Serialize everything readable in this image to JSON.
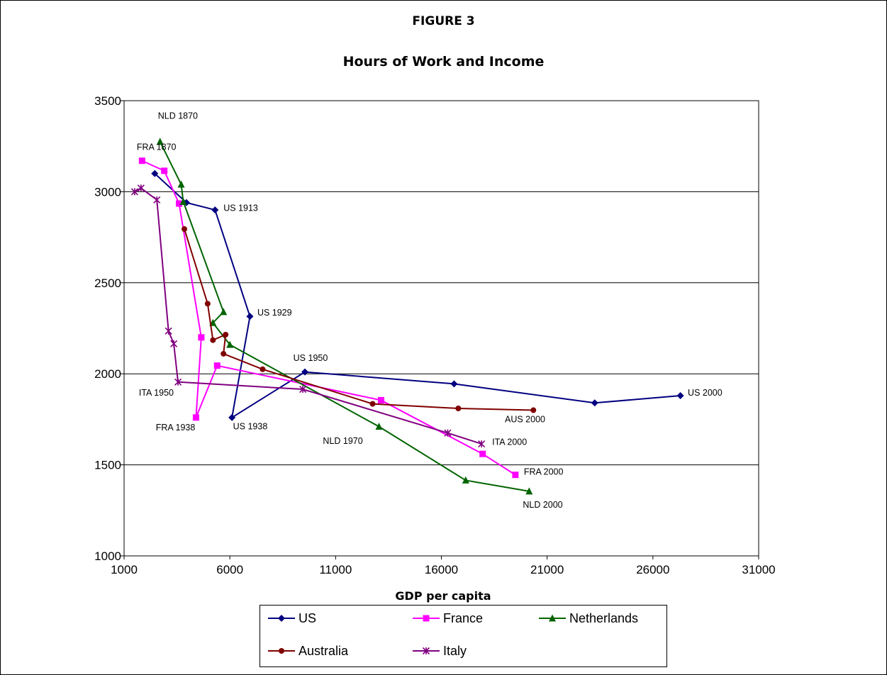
{
  "figure_label": "FIGURE 3",
  "chart_data": {
    "type": "line",
    "title": "Hours of Work and Income",
    "xlabel": "GDP per capita",
    "ylabel": "",
    "xlim": [
      1000,
      31000
    ],
    "ylim": [
      1000,
      3500
    ],
    "xticks": [
      1000,
      6000,
      11000,
      16000,
      21000,
      26000,
      31000
    ],
    "yticks": [
      1000,
      1500,
      2000,
      2500,
      3000,
      3500
    ],
    "grid": "horizontal",
    "legend_position": "bottom",
    "series": [
      {
        "name": "US",
        "color": "#000080",
        "marker": "diamond",
        "x": [
          2450,
          3950,
          5300,
          6950,
          6100,
          9550,
          16600,
          23250,
          27300
        ],
        "y": [
          3100,
          2940,
          2900,
          2315,
          1760,
          2010,
          1945,
          1840,
          1880
        ]
      },
      {
        "name": "France",
        "color": "#ff00ff",
        "marker": "square",
        "x": [
          1850,
          2900,
          3600,
          4650,
          4400,
          5400,
          13150,
          17950,
          19500
        ],
        "y": [
          3170,
          3115,
          2935,
          2200,
          1760,
          2045,
          1855,
          1560,
          1445
        ]
      },
      {
        "name": "Netherlands",
        "color": "#006400",
        "marker": "triangle",
        "x": [
          2700,
          3700,
          3800,
          5700,
          5200,
          6000,
          13050,
          17150,
          20150
        ],
        "y": [
          3275,
          3040,
          2945,
          2340,
          2280,
          2160,
          1710,
          1415,
          1355
        ]
      },
      {
        "name": "Australia",
        "color": "#800000",
        "marker": "circle",
        "x": [
          3850,
          4950,
          5200,
          5800,
          5700,
          7550,
          12750,
          16800,
          20350
        ],
        "y": [
          2795,
          2385,
          2185,
          2215,
          2110,
          2025,
          1835,
          1810,
          1800
        ]
      },
      {
        "name": "Italy",
        "color": "#800080",
        "marker": "star",
        "x": [
          1500,
          1800,
          2550,
          3100,
          3350,
          3550,
          9450,
          16300,
          17900
        ],
        "y": [
          3000,
          3020,
          2955,
          2235,
          2165,
          1955,
          1915,
          1675,
          1615
        ]
      }
    ],
    "annotations": [
      {
        "text": "NLD 1870",
        "x": 2600,
        "y": 3400
      },
      {
        "text": "FRA 1870",
        "x": 1600,
        "y": 3230
      },
      {
        "text": "US 1913",
        "x": 5700,
        "y": 2895
      },
      {
        "text": "US 1929",
        "x": 7300,
        "y": 2320
      },
      {
        "text": "US 1950",
        "x": 9000,
        "y": 2070
      },
      {
        "text": "ITA 1950",
        "x": 1700,
        "y": 1880
      },
      {
        "text": "US 2000",
        "x": 27650,
        "y": 1880
      },
      {
        "text": "AUS 2000",
        "x": 19000,
        "y": 1735
      },
      {
        "text": "FRA 1938",
        "x": 2500,
        "y": 1690
      },
      {
        "text": "US 1938",
        "x": 6150,
        "y": 1695
      },
      {
        "text": "NLD 1970",
        "x": 10400,
        "y": 1615
      },
      {
        "text": "ITA 2000",
        "x": 18400,
        "y": 1610
      },
      {
        "text": "FRA 2000",
        "x": 19900,
        "y": 1445
      },
      {
        "text": "NLD 2000",
        "x": 19850,
        "y": 1265
      }
    ]
  }
}
